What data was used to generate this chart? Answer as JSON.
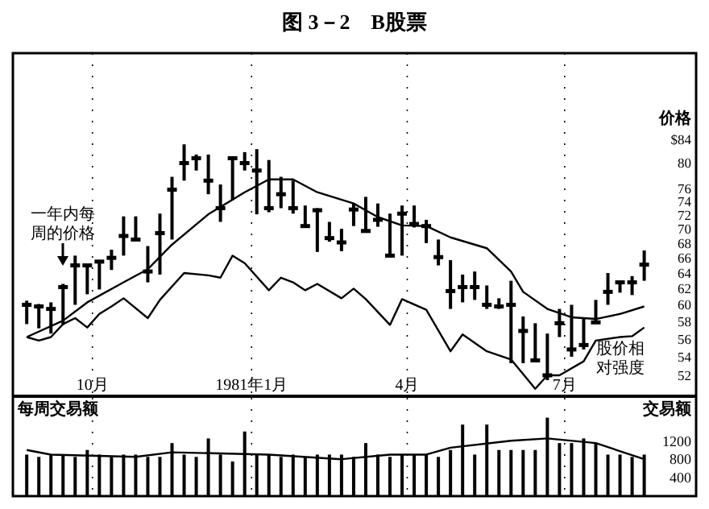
{
  "chart_data": [
    {
      "type": "bar",
      "title": "图 3－2　B股票",
      "ylabel": "价格",
      "log": true,
      "grid": "x",
      "x": [
        "1980-08-24",
        "1980-08-31",
        "1980-09-07",
        "1980-09-14",
        "1980-09-21",
        "1980-09-28",
        "1980-10-05",
        "1980-10-12",
        "1980-10-19",
        "1980-10-26",
        "1980-11-02",
        "1980-11-09",
        "1980-11-16",
        "1980-11-23",
        "1980-11-30",
        "1980-12-07",
        "1980-12-14",
        "1980-12-21",
        "1980-12-28",
        "1981-01-04",
        "1981-01-11",
        "1981-01-18",
        "1981-01-25",
        "1981-02-01",
        "1981-02-08",
        "1981-02-15",
        "1981-02-22",
        "1981-03-01",
        "1981-03-08",
        "1981-03-15",
        "1981-03-22",
        "1981-03-29",
        "1981-04-05",
        "1981-04-12",
        "1981-04-19",
        "1981-04-26",
        "1981-05-03",
        "1981-05-10",
        "1981-05-17",
        "1981-05-24",
        "1981-05-31",
        "1981-06-07",
        "1981-06-14",
        "1981-06-21",
        "1981-06-28",
        "1981-07-05",
        "1981-07-12",
        "1981-07-19",
        "1981-07-26",
        "1981-08-02",
        "1981-08-09",
        "1981-08-16"
      ],
      "xlim": [
        "1980-08-16",
        "1981-09-15"
      ],
      "xticks": [
        {
          "value": "1980-10-01",
          "label": "10月"
        },
        {
          "value": "1981-01-01",
          "label": "1981年1月"
        },
        {
          "value": "1981-04-01",
          "label": "4月"
        },
        {
          "value": "1981-07-01",
          "label": "7月"
        }
      ],
      "ylim": [
        50,
        100
      ],
      "yticks": [
        52,
        54,
        56,
        58,
        60,
        62,
        64,
        66,
        68,
        70,
        72,
        74,
        76,
        80,
        {
          "value": 84,
          "label": "$84"
        }
      ],
      "series": [
        {
          "color": "#000000",
          "base": [
            57.7,
            57.2,
            56.6,
            57.6,
            60.0,
            61.3,
            61.9,
            64.4,
            66.3,
            68.5,
            62.8,
            63.8,
            68.5,
            77.2,
            78.8,
            75.1,
            71.0,
            74.2,
            78.8,
            72.1,
            72.4,
            73.0,
            72.2,
            70.4,
            66.8,
            68.2,
            66.9,
            70.4,
            69.5,
            70.3,
            66.1,
            66.3,
            70.2,
            68.0,
            65.0,
            59.5,
            60.3,
            60.6,
            59.5,
            59.5,
            53.3,
            53.3,
            53.6,
            51.5,
            56.2,
            54.0,
            54.8,
            57.8,
            60.0,
            61.5,
            61.2,
            63.0
          ],
          "values": [
            2.8,
            2.9,
            3.7,
            5.0,
            6.3,
            3.8,
            3.8,
            2.7,
            5.5,
            3.3,
            4.8,
            8.4,
            9.3,
            5.9,
            2.6,
            6.3,
            5.6,
            6.7,
            3.0,
            10.2,
            8.1,
            4.8,
            5.0,
            3.0,
            6.2,
            2.8,
            3.1,
            3.3,
            5.2,
            3.4,
            6.1,
            7.1,
            3.2,
            3.3,
            3.5,
            6.2,
            3.5,
            3.6,
            2.9,
            1.3,
            9.7,
            5.3,
            4.2,
            5.1,
            3.3,
            6.0,
            3.6,
            2.8,
            4.0,
            1.5,
            2.4,
            4.0
          ]
        },
        {
          "type": "scatter",
          "marker": "square",
          "color": "#000000",
          "values": [
            60,
            59.8,
            59.5,
            62.2,
            65.0,
            65,
            65.5,
            66,
            69,
            68.5,
            64.2,
            69.4,
            75.8,
            80,
            80.8,
            77.2,
            73,
            80.8,
            80,
            78.8,
            73,
            75.1,
            73,
            70.4,
            72.7,
            68.7,
            68.1,
            72.8,
            69.7,
            71.3,
            66.3,
            72.2,
            70.7,
            70.4,
            66.1,
            61.7,
            62.2,
            62.2,
            60,
            59.8,
            60,
            56.9,
            53.6,
            52,
            57.8,
            54.8,
            55.3,
            57.9,
            61.6,
            62.8,
            62.8,
            65.1
          ]
        },
        {
          "type": "line",
          "color": "#000000",
          "x": [
            "1980-08-24",
            "1980-09-14",
            "1980-09-28",
            "1980-10-19",
            "1980-11-02",
            "1980-11-16",
            "1980-12-07",
            "1980-12-28",
            "1981-01-11",
            "1981-01-25",
            "1981-02-08",
            "1981-03-01",
            "1981-03-15",
            "1981-03-29",
            "1981-04-12",
            "1981-04-26",
            "1981-05-17",
            "1981-05-31",
            "1981-06-07",
            "1981-06-21",
            "1981-07-05",
            "1981-07-19",
            "1981-08-02",
            "1981-08-16"
          ],
          "values": [
            56.2,
            58.1,
            60.3,
            62.8,
            64.5,
            67.8,
            72.1,
            75.4,
            77.4,
            77.4,
            75.4,
            73.7,
            71.7,
            70.5,
            70.4,
            68.8,
            67.3,
            64.2,
            61.6,
            59.5,
            58.5,
            58.3,
            58.9,
            59.8
          ]
        },
        {
          "type": "line",
          "name": "股价相对强度",
          "color": "#000000",
          "x": [
            "1980-08-24",
            "1980-08-31",
            "1980-09-07",
            "1980-09-14",
            "1980-09-21",
            "1980-09-28",
            "1980-10-05",
            "1980-10-12",
            "1980-10-19",
            "1980-11-02",
            "1980-11-09",
            "1980-11-23",
            "1980-12-07",
            "1980-12-14",
            "1980-12-21",
            "1980-12-28",
            "1981-01-11",
            "1981-01-18",
            "1981-01-25",
            "1981-02-01",
            "1981-02-08",
            "1981-02-22",
            "1981-03-01",
            "1981-03-08",
            "1981-03-22",
            "1981-03-29",
            "1981-04-12",
            "1981-04-26",
            "1981-05-03",
            "1981-05-17",
            "1981-05-31",
            "1981-06-14",
            "1981-06-21",
            "1981-06-28",
            "1981-07-12",
            "1981-07-19",
            "1981-08-02",
            "1981-08-09",
            "1981-08-16"
          ],
          "values": [
            56.2,
            55.8,
            56.2,
            57.7,
            58.4,
            57.3,
            58.9,
            59.8,
            60.8,
            58.4,
            60.6,
            64.0,
            63.7,
            63.4,
            66.3,
            65.3,
            61.8,
            63.4,
            62.8,
            61.8,
            62.6,
            60.8,
            62.0,
            60.7,
            57.6,
            60.7,
            59.4,
            54.6,
            56.5,
            54.6,
            53.7,
            50.6,
            52.0,
            52.0,
            53.5,
            55.8,
            56.2,
            56.3,
            57.3
          ]
        }
      ],
      "annotations": [
        "一年内每周的价格"
      ]
    },
    {
      "type": "bar",
      "title": "每周交易额",
      "ylabel": "交易额",
      "grid": "x",
      "tick_labels": "y",
      "x": [
        "1980-08-24",
        "1980-08-31",
        "1980-09-07",
        "1980-09-14",
        "1980-09-21",
        "1980-09-28",
        "1980-10-05",
        "1980-10-12",
        "1980-10-19",
        "1980-10-26",
        "1980-11-02",
        "1980-11-09",
        "1980-11-16",
        "1980-11-23",
        "1980-11-30",
        "1980-12-07",
        "1980-12-14",
        "1980-12-21",
        "1980-12-28",
        "1981-01-04",
        "1981-01-11",
        "1981-01-18",
        "1981-01-25",
        "1981-02-01",
        "1981-02-08",
        "1981-02-15",
        "1981-02-22",
        "1981-03-01",
        "1981-03-08",
        "1981-03-15",
        "1981-03-22",
        "1981-03-29",
        "1981-04-05",
        "1981-04-12",
        "1981-04-19",
        "1981-04-26",
        "1981-05-03",
        "1981-05-10",
        "1981-05-17",
        "1981-05-24",
        "1981-05-31",
        "1981-06-07",
        "1981-06-14",
        "1981-06-21",
        "1981-06-28",
        "1981-07-05",
        "1981-07-12",
        "1981-07-19",
        "1981-07-26",
        "1981-08-02",
        "1981-08-09",
        "1981-08-16"
      ],
      "xlim": [
        "1980-08-16",
        "1981-09-15"
      ],
      "xticks": [
        {
          "value": "1980-10-01",
          "label": null
        },
        {
          "value": "1981-01-01",
          "label": null
        },
        {
          "value": "1981-04-01",
          "label": null
        },
        {
          "value": "1981-07-01",
          "label": null
        }
      ],
      "ylim": [
        0,
        2130
      ],
      "yticks": [
        400,
        800,
        1200
      ],
      "series": [
        {
          "color": "#000000",
          "values": [
            900,
            850,
            900,
            900,
            850,
            1000,
            900,
            850,
            900,
            900,
            850,
            850,
            1150,
            900,
            850,
            1250,
            900,
            750,
            1400,
            900,
            900,
            850,
            900,
            850,
            900,
            900,
            900,
            850,
            1150,
            900,
            850,
            900,
            900,
            900,
            850,
            1000,
            1550,
            900,
            1550,
            1000,
            1000,
            1000,
            1000,
            1700,
            1150,
            1150,
            1250,
            1150,
            900,
            900,
            850,
            900
          ]
        },
        {
          "type": "line",
          "color": "#000000",
          "x": [
            "1980-08-24",
            "1980-09-07",
            "1980-10-26",
            "1980-11-16",
            "1981-01-11",
            "1981-02-22",
            "1981-03-22",
            "1981-04-12",
            "1981-04-26",
            "1981-05-31",
            "1981-06-21",
            "1981-07-19",
            "1981-08-16"
          ],
          "values": [
            1000,
            900,
            850,
            950,
            900,
            800,
            900,
            900,
            1050,
            1200,
            1250,
            1150,
            800
          ]
        }
      ]
    }
  ]
}
